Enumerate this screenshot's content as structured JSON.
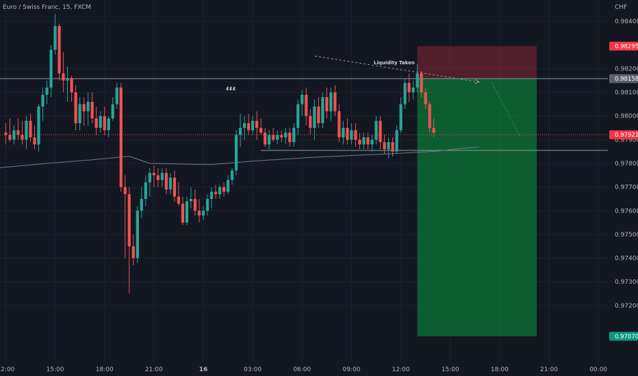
{
  "header": {
    "symbol_title": "Euro / Swiss Franc, 15, FXCM"
  },
  "chart_data": {
    "type": "candlestick",
    "title": "Euro / Swiss Franc, 15, FXCM",
    "currency_label": "CHF",
    "ylim": [
      0.9696,
      0.9849
    ],
    "y_ticks": [
      0.984,
      0.982,
      0.981,
      0.98,
      0.979,
      0.978,
      0.977,
      0.976,
      0.975,
      0.974,
      0.973,
      0.972
    ],
    "y_tick_labels": [
      "0.98400",
      "0.98200",
      "0.98100",
      "0.98000",
      "0.97900",
      "0.97800",
      "0.97700",
      "0.97600",
      "0.97500",
      "0.97400",
      "0.97300",
      "0.97200"
    ],
    "x_ticks": [
      0,
      12,
      24,
      36,
      48,
      60,
      72,
      84,
      96,
      108,
      120,
      132,
      144
    ],
    "x_tick_labels": [
      "12:00",
      "15:00",
      "18:00",
      "21:00",
      "16",
      "03:00",
      "06:00",
      "09:00",
      "12:00",
      "15:00",
      "18:00",
      "21:00",
      "00:00"
    ],
    "x_range": [
      -1.4,
      146.3
    ],
    "bar_interval": "15m",
    "up_color": "#26a69a",
    "down_color": "#ef5350",
    "candles": [
      [
        0.9793,
        0.9797,
        0.9788,
        0.9792
      ],
      [
        0.9792,
        0.9799,
        0.9789,
        0.979
      ],
      [
        0.979,
        0.9796,
        0.9788,
        0.9794
      ],
      [
        0.9794,
        0.9799,
        0.979,
        0.9792
      ],
      [
        0.9792,
        0.9798,
        0.9788,
        0.979
      ],
      [
        0.979,
        0.98,
        0.9786,
        0.9798
      ],
      [
        0.9798,
        0.9801,
        0.9789,
        0.9791
      ],
      [
        0.9791,
        0.9796,
        0.9786,
        0.9788
      ],
      [
        0.9788,
        0.9805,
        0.9785,
        0.9804
      ],
      [
        0.9804,
        0.9812,
        0.9798,
        0.9809
      ],
      [
        0.9809,
        0.9815,
        0.9805,
        0.9812
      ],
      [
        0.9812,
        0.983,
        0.9808,
        0.9828
      ],
      [
        0.9828,
        0.9843,
        0.9826,
        0.9838
      ],
      [
        0.9838,
        0.9839,
        0.9815,
        0.9818
      ],
      [
        0.9818,
        0.9827,
        0.981,
        0.9815
      ],
      [
        0.9815,
        0.9821,
        0.9806,
        0.9816
      ],
      [
        0.9816,
        0.9817,
        0.9806,
        0.981
      ],
      [
        0.981,
        0.9813,
        0.9794,
        0.9797
      ],
      [
        0.9797,
        0.9808,
        0.9794,
        0.9805
      ],
      [
        0.9805,
        0.9808,
        0.9796,
        0.9802
      ],
      [
        0.9802,
        0.981,
        0.9796,
        0.9806
      ],
      [
        0.9806,
        0.981,
        0.9797,
        0.9799
      ],
      [
        0.9799,
        0.9804,
        0.9792,
        0.9795
      ],
      [
        0.9795,
        0.9802,
        0.9793,
        0.98
      ],
      [
        0.98,
        0.9804,
        0.9792,
        0.9794
      ],
      [
        0.9794,
        0.98,
        0.9791,
        0.9799
      ],
      [
        0.9799,
        0.9808,
        0.9798,
        0.9805
      ],
      [
        0.9805,
        0.9814,
        0.9803,
        0.9812
      ],
      [
        0.9812,
        0.9814,
        0.9768,
        0.977
      ],
      [
        0.977,
        0.9775,
        0.974,
        0.9767
      ],
      [
        0.9767,
        0.977,
        0.9725,
        0.9745
      ],
      [
        0.9745,
        0.975,
        0.9737,
        0.974
      ],
      [
        0.974,
        0.9762,
        0.9738,
        0.976
      ],
      [
        0.976,
        0.977,
        0.9757,
        0.9765
      ],
      [
        0.9765,
        0.9775,
        0.9762,
        0.9772
      ],
      [
        0.9772,
        0.9778,
        0.9766,
        0.9776
      ],
      [
        0.9776,
        0.9779,
        0.977,
        0.9775
      ],
      [
        0.9775,
        0.9778,
        0.977,
        0.9773
      ],
      [
        0.9773,
        0.9778,
        0.977,
        0.9776
      ],
      [
        0.9776,
        0.9778,
        0.9767,
        0.9769
      ],
      [
        0.9769,
        0.9776,
        0.9767,
        0.9774
      ],
      [
        0.9774,
        0.9777,
        0.9764,
        0.9766
      ],
      [
        0.9766,
        0.9772,
        0.9762,
        0.9763
      ],
      [
        0.9763,
        0.9766,
        0.9754,
        0.9755
      ],
      [
        0.9755,
        0.9766,
        0.9754,
        0.9764
      ],
      [
        0.9764,
        0.977,
        0.9761,
        0.9765
      ],
      [
        0.9765,
        0.9769,
        0.9758,
        0.976
      ],
      [
        0.976,
        0.9765,
        0.9755,
        0.9758
      ],
      [
        0.9758,
        0.9762,
        0.9756,
        0.976
      ],
      [
        0.976,
        0.9767,
        0.9758,
        0.9765
      ],
      [
        0.9765,
        0.977,
        0.9761,
        0.9768
      ],
      [
        0.9768,
        0.9771,
        0.9765,
        0.9767
      ],
      [
        0.9767,
        0.9771,
        0.9765,
        0.977
      ],
      [
        0.977,
        0.9772,
        0.9766,
        0.9768
      ],
      [
        0.9768,
        0.9775,
        0.9767,
        0.9773
      ],
      [
        0.9773,
        0.9778,
        0.9771,
        0.9777
      ],
      [
        0.9777,
        0.9794,
        0.9775,
        0.9792
      ],
      [
        0.9792,
        0.9801,
        0.9787,
        0.9795
      ],
      [
        0.9795,
        0.98,
        0.979,
        0.9797
      ],
      [
        0.9797,
        0.9801,
        0.9792,
        0.9794
      ],
      [
        0.9794,
        0.98,
        0.9792,
        0.9798
      ],
      [
        0.9798,
        0.9802,
        0.979,
        0.9795
      ],
      [
        0.9795,
        0.9799,
        0.9792,
        0.9793
      ],
      [
        0.9793,
        0.9795,
        0.9787,
        0.9788
      ],
      [
        0.9788,
        0.9794,
        0.9786,
        0.9792
      ],
      [
        0.9792,
        0.9795,
        0.9789,
        0.979
      ],
      [
        0.979,
        0.9794,
        0.9788,
        0.9792
      ],
      [
        0.9792,
        0.9794,
        0.9789,
        0.9791
      ],
      [
        0.9791,
        0.9795,
        0.9788,
        0.9793
      ],
      [
        0.9793,
        0.9795,
        0.9787,
        0.9789
      ],
      [
        0.9789,
        0.9797,
        0.9787,
        0.9795
      ],
      [
        0.9795,
        0.9807,
        0.9792,
        0.9805
      ],
      [
        0.9805,
        0.9811,
        0.98,
        0.9809
      ],
      [
        0.9809,
        0.9812,
        0.9796,
        0.98
      ],
      [
        0.98,
        0.9803,
        0.9792,
        0.9795
      ],
      [
        0.9795,
        0.9807,
        0.979,
        0.9804
      ],
      [
        0.9804,
        0.9808,
        0.9795,
        0.9797
      ],
      [
        0.9797,
        0.981,
        0.9795,
        0.9808
      ],
      [
        0.9808,
        0.9812,
        0.9799,
        0.9802
      ],
      [
        0.9802,
        0.9812,
        0.9798,
        0.981
      ],
      [
        0.981,
        0.9813,
        0.98,
        0.9802
      ],
      [
        0.9802,
        0.9805,
        0.9789,
        0.9791
      ],
      [
        0.9791,
        0.9798,
        0.9788,
        0.9795
      ],
      [
        0.9795,
        0.9799,
        0.9788,
        0.979
      ],
      [
        0.979,
        0.9797,
        0.9788,
        0.9794
      ],
      [
        0.9794,
        0.9797,
        0.9787,
        0.979
      ],
      [
        0.979,
        0.9793,
        0.9786,
        0.9788
      ],
      [
        0.9788,
        0.9793,
        0.9786,
        0.9791
      ],
      [
        0.9791,
        0.9793,
        0.9786,
        0.9788
      ],
      [
        0.9788,
        0.9792,
        0.9785,
        0.979
      ],
      [
        0.979,
        0.98,
        0.9788,
        0.9798
      ],
      [
        0.9798,
        0.98,
        0.9786,
        0.9789
      ],
      [
        0.9789,
        0.9792,
        0.9784,
        0.9786
      ],
      [
        0.9786,
        0.9791,
        0.9782,
        0.9789
      ],
      [
        0.9789,
        0.9791,
        0.9783,
        0.9785
      ],
      [
        0.9785,
        0.9796,
        0.9784,
        0.9794
      ],
      [
        0.9794,
        0.9808,
        0.9793,
        0.9805
      ],
      [
        0.9805,
        0.9816,
        0.9803,
        0.9814
      ],
      [
        0.9814,
        0.9818,
        0.9806,
        0.981
      ],
      [
        0.981,
        0.9815,
        0.9807,
        0.9812
      ],
      [
        0.9812,
        0.9822,
        0.981,
        0.9818
      ],
      [
        0.9818,
        0.9819,
        0.9808,
        0.981
      ],
      [
        0.981,
        0.9812,
        0.9803,
        0.9805
      ],
      [
        0.9805,
        0.9806,
        0.9793,
        0.9795
      ],
      [
        0.9795,
        0.9799,
        0.9791,
        0.9793
      ]
    ],
    "ma_line": {
      "name": "",
      "color": "#787b86",
      "points": [
        [
          -1.4,
          0.97782
        ],
        [
          10,
          0.978
        ],
        [
          20,
          0.97814
        ],
        [
          30,
          0.9783
        ],
        [
          35,
          0.978
        ],
        [
          50,
          0.97795
        ],
        [
          60,
          0.9781
        ],
        [
          75,
          0.97826
        ],
        [
          85,
          0.97834
        ],
        [
          95,
          0.97842
        ],
        [
          105,
          0.97852
        ],
        [
          110,
          0.97862
        ],
        [
          115,
          0.9787
        ]
      ]
    },
    "lines": [
      {
        "name": "liquidity-level",
        "label": "£££",
        "y": 0.98158,
        "x_from": -1.4,
        "x_to": 146.3,
        "color": "#9598a1"
      },
      {
        "name": "current-price-line",
        "y": 0.97921,
        "x_from": -1.4,
        "x_to": 146.3,
        "color": "#ef5350",
        "style": "dotted"
      },
      {
        "name": "support-level",
        "y": 0.97855,
        "x_from": 62,
        "x_to": 146.3,
        "color": "#9598a1"
      }
    ],
    "annotations": [
      {
        "text": "Liquidity Taken"
      }
    ],
    "position": {
      "type": "short",
      "entry": 0.98158,
      "stop": 0.98295,
      "target": 0.9707,
      "x_from": 100,
      "x_to": 129
    },
    "price_badges": [
      {
        "name": "stop-price-badge",
        "label": "0.98295",
        "value": 0.98295,
        "color": "#f23645"
      },
      {
        "name": "entry-price-badge",
        "label": "0.98158",
        "value": 0.98158,
        "color": "#5d606b"
      },
      {
        "name": "last-price-badge",
        "label": "0.97921",
        "value": 0.97921,
        "color": "#f23645"
      },
      {
        "name": "target-price-badge",
        "label": "0.97070",
        "value": 0.9707,
        "color": "#089981"
      }
    ],
    "grid": true
  }
}
